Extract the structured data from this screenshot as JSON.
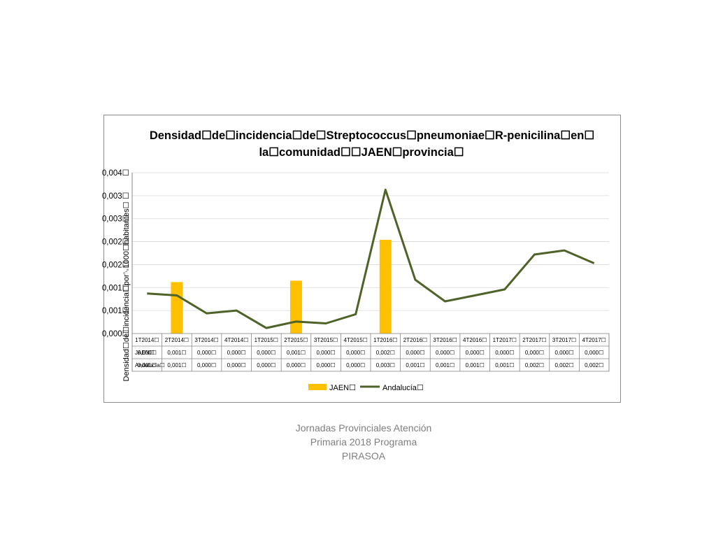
{
  "chart_data": {
    "type": "bar+line",
    "title_lines": [
      "Densidad☐de☐incidencia☐de☐Streptococcus☐pneumoniae☐R-penicilina☐en☐",
      "la☐comunidad☐☐JAEN☐provincia☐"
    ],
    "ylabel": "Densidad☐de☐incidencia☐por␐1000☐habitantes☐",
    "y_tick_labels": [
      "0,004☐",
      "0,003☐",
      "0,003☐",
      "0,002☐",
      "0,002☐",
      "0,001☐",
      "0,001☐",
      "0,000☐"
    ],
    "ylim": [
      0,
      0.0035
    ],
    "categories": [
      "1T2014☐",
      "2T2014☐",
      "3T2014☐",
      "4T2014☐",
      "1T2015☐",
      "2T2015☐",
      "3T2015☐",
      "4T2015☐",
      "1T2016☐",
      "2T2016☐",
      "3T2016☐",
      "4T2016☐",
      "1T2017☐",
      "2T2017☐",
      "3T2017☐",
      "4T2017☐"
    ],
    "series": [
      {
        "name": "JAEN☐",
        "kind": "bar",
        "color": "#ffc000",
        "values": [
          0,
          0.00112,
          0,
          0,
          0,
          0.00115,
          0,
          0,
          0.00204,
          0,
          0,
          0,
          0,
          0,
          0,
          0
        ],
        "table_labels": [
          "0,000☐",
          "0,001☐",
          "0,000☐",
          "0,000☐",
          "0,000☐",
          "0,001☐",
          "0,000☐",
          "0,000☐",
          "0,002☐",
          "0,000☐",
          "0,000☐",
          "0,000☐",
          "0,000☐",
          "0,000☐",
          "0,000☐",
          "0,000☐"
        ]
      },
      {
        "name": "Andalucía☐",
        "kind": "line",
        "color": "#4f6228",
        "values": [
          0.00087,
          0.00083,
          0.00044,
          0.0005,
          0.00012,
          0.00026,
          0.00022,
          0.00042,
          0.00313,
          0.00117,
          0.0007,
          0.00083,
          0.00096,
          0.00172,
          0.00181,
          0.00153
        ],
        "table_labels": [
          "0,001☐",
          "0,001☐",
          "0,000☐",
          "0,000☐",
          "0,000☐",
          "0,000☐",
          "0,000☐",
          "0,000☐",
          "0,003☐",
          "0,001☐",
          "0,001☐",
          "0,001☐",
          "0,001☐",
          "0,002☐",
          "0,002☐",
          "0,002☐"
        ]
      }
    ],
    "legend_position": "bottom",
    "grid": true
  },
  "footer": {
    "lines": [
      "Jornadas Provinciales Atención",
      "Primaria 2018  Programa",
      "PIRASOA"
    ]
  }
}
